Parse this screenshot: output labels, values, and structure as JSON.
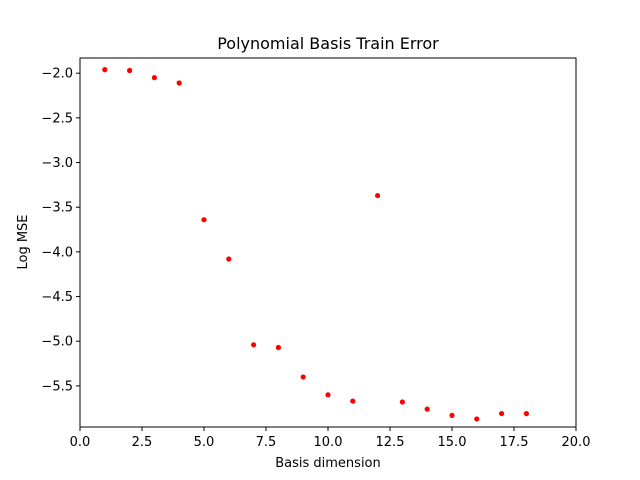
{
  "chart_data": {
    "type": "scatter",
    "title": "Polynomial Basis Train Error",
    "xlabel": "Basis dimension",
    "ylabel": "Log MSE",
    "xlim": [
      0,
      20
    ],
    "ylim": [
      -5.96,
      -1.83
    ],
    "x_ticks": [
      0,
      2.5,
      5,
      7.5,
      10,
      12.5,
      15,
      17.5,
      20
    ],
    "x_tick_labels": [
      "0.0",
      "2.5",
      "5.0",
      "7.5",
      "10.0",
      "12.5",
      "15.0",
      "17.5",
      "20.0"
    ],
    "y_ticks": [
      -2.0,
      -2.5,
      -3.0,
      -3.5,
      -4.0,
      -4.5,
      -5.0,
      -5.5
    ],
    "y_tick_labels": [
      "−2.0",
      "−2.5",
      "−3.0",
      "−3.5",
      "−4.0",
      "−4.5",
      "−5.0",
      "−5.5"
    ],
    "grid": false,
    "marker_color": "#ff0000",
    "points": [
      {
        "x": 1,
        "y": -1.96
      },
      {
        "x": 2,
        "y": -1.97
      },
      {
        "x": 3,
        "y": -2.05
      },
      {
        "x": 4,
        "y": -2.11
      },
      {
        "x": 5,
        "y": -3.64
      },
      {
        "x": 6,
        "y": -4.08
      },
      {
        "x": 7,
        "y": -5.04
      },
      {
        "x": 8,
        "y": -5.07
      },
      {
        "x": 9,
        "y": -5.4
      },
      {
        "x": 10,
        "y": -5.6
      },
      {
        "x": 11,
        "y": -5.67
      },
      {
        "x": 12,
        "y": -3.37
      },
      {
        "x": 13,
        "y": -5.68
      },
      {
        "x": 14,
        "y": -5.76
      },
      {
        "x": 15,
        "y": -5.83
      },
      {
        "x": 16,
        "y": -5.87
      },
      {
        "x": 17,
        "y": -5.81
      },
      {
        "x": 18,
        "y": -5.81
      }
    ]
  }
}
